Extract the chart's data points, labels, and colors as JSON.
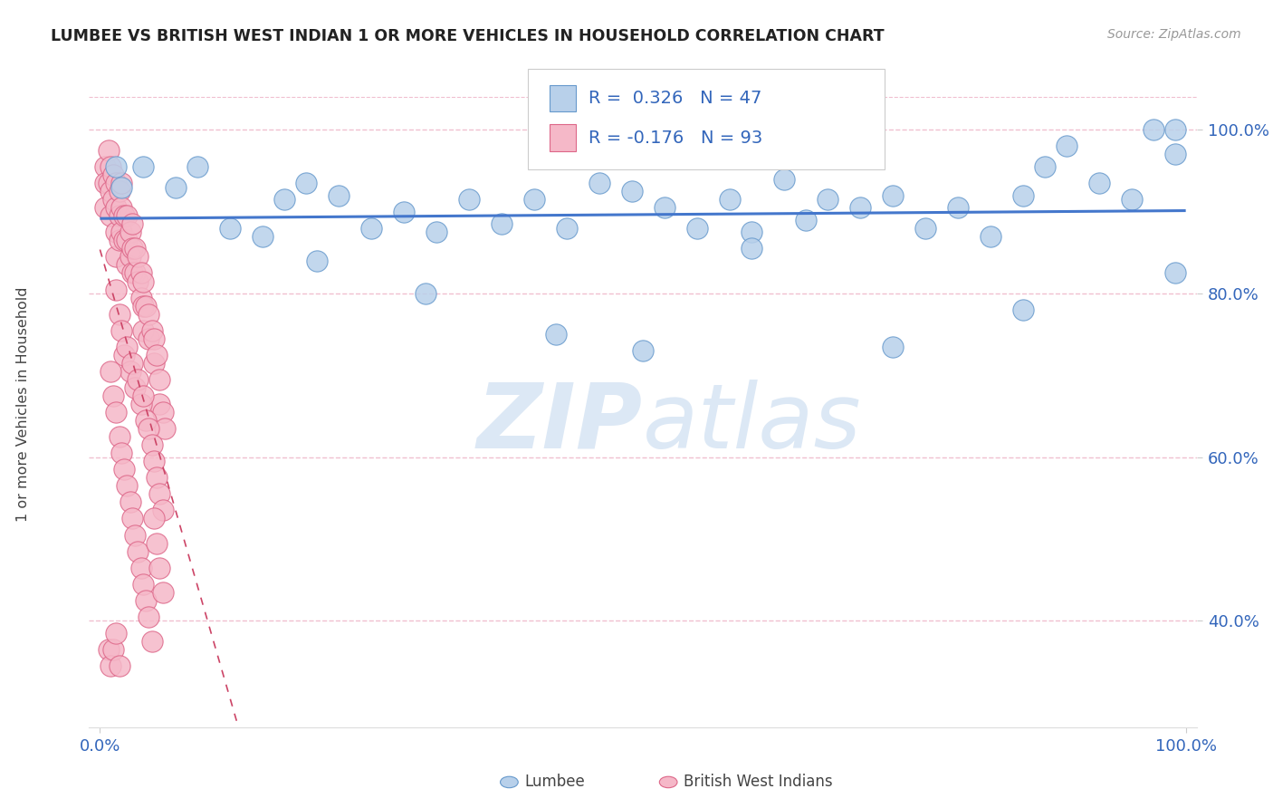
{
  "title": "LUMBEE VS BRITISH WEST INDIAN 1 OR MORE VEHICLES IN HOUSEHOLD CORRELATION CHART",
  "source_text": "Source: ZipAtlas.com",
  "ylabel": "1 or more Vehicles in Household",
  "xlim": [
    -0.01,
    1.01
  ],
  "ylim": [
    0.27,
    1.06
  ],
  "y_ticks": [
    0.4,
    0.6,
    0.8,
    1.0
  ],
  "y_tick_labels": [
    "40.0%",
    "60.0%",
    "80.0%",
    "100.0%"
  ],
  "x_tick_labels": [
    "0.0%",
    "100.0%"
  ],
  "R_blue": 0.326,
  "N_blue": 47,
  "R_pink": -0.176,
  "N_pink": 93,
  "blue_face": "#b8d0ea",
  "blue_edge": "#6699cc",
  "pink_face": "#f5b8c8",
  "pink_edge": "#dd6688",
  "trend_blue": "#4477cc",
  "trend_pink": "#cc4466",
  "watermark_color": "#dce8f5",
  "grid_color": "#f0c0d0",
  "bg_color": "#ffffff",
  "tick_color": "#3366bb",
  "blue_scatter_x": [
    0.015,
    0.02,
    0.04,
    0.07,
    0.09,
    0.12,
    0.15,
    0.17,
    0.19,
    0.22,
    0.25,
    0.28,
    0.31,
    0.34,
    0.37,
    0.4,
    0.43,
    0.46,
    0.49,
    0.52,
    0.55,
    0.58,
    0.6,
    0.63,
    0.65,
    0.67,
    0.7,
    0.73,
    0.76,
    0.79,
    0.82,
    0.85,
    0.87,
    0.89,
    0.92,
    0.95,
    0.97,
    0.99,
    0.99,
    0.99,
    0.85,
    0.73,
    0.6,
    0.5,
    0.42,
    0.3,
    0.2
  ],
  "blue_scatter_y": [
    0.955,
    0.93,
    0.955,
    0.93,
    0.955,
    0.88,
    0.87,
    0.915,
    0.935,
    0.92,
    0.88,
    0.9,
    0.875,
    0.915,
    0.885,
    0.915,
    0.88,
    0.935,
    0.925,
    0.905,
    0.88,
    0.915,
    0.875,
    0.94,
    0.89,
    0.915,
    0.905,
    0.92,
    0.88,
    0.905,
    0.87,
    0.92,
    0.955,
    0.98,
    0.935,
    0.915,
    1.0,
    1.0,
    0.97,
    0.825,
    0.78,
    0.735,
    0.855,
    0.73,
    0.75,
    0.8,
    0.84
  ],
  "pink_scatter_x": [
    0.005,
    0.005,
    0.005,
    0.008,
    0.008,
    0.01,
    0.01,
    0.01,
    0.012,
    0.012,
    0.015,
    0.015,
    0.015,
    0.015,
    0.018,
    0.018,
    0.018,
    0.02,
    0.02,
    0.02,
    0.022,
    0.022,
    0.025,
    0.025,
    0.025,
    0.028,
    0.028,
    0.03,
    0.03,
    0.03,
    0.032,
    0.032,
    0.035,
    0.035,
    0.038,
    0.038,
    0.04,
    0.04,
    0.04,
    0.042,
    0.045,
    0.045,
    0.048,
    0.05,
    0.05,
    0.052,
    0.055,
    0.055,
    0.058,
    0.06,
    0.015,
    0.018,
    0.02,
    0.022,
    0.025,
    0.028,
    0.03,
    0.032,
    0.035,
    0.038,
    0.04,
    0.042,
    0.045,
    0.048,
    0.05,
    0.052,
    0.055,
    0.058,
    0.01,
    0.012,
    0.015,
    0.018,
    0.02,
    0.022,
    0.025,
    0.028,
    0.03,
    0.032,
    0.035,
    0.038,
    0.04,
    0.042,
    0.045,
    0.048,
    0.05,
    0.052,
    0.055,
    0.058,
    0.008,
    0.01,
    0.012,
    0.015,
    0.018
  ],
  "pink_scatter_y": [
    0.955,
    0.935,
    0.905,
    0.975,
    0.935,
    0.955,
    0.925,
    0.895,
    0.945,
    0.915,
    0.935,
    0.905,
    0.875,
    0.845,
    0.925,
    0.895,
    0.865,
    0.935,
    0.905,
    0.875,
    0.895,
    0.865,
    0.895,
    0.865,
    0.835,
    0.875,
    0.845,
    0.885,
    0.855,
    0.825,
    0.855,
    0.825,
    0.845,
    0.815,
    0.825,
    0.795,
    0.815,
    0.785,
    0.755,
    0.785,
    0.775,
    0.745,
    0.755,
    0.745,
    0.715,
    0.725,
    0.695,
    0.665,
    0.655,
    0.635,
    0.805,
    0.775,
    0.755,
    0.725,
    0.735,
    0.705,
    0.715,
    0.685,
    0.695,
    0.665,
    0.675,
    0.645,
    0.635,
    0.615,
    0.595,
    0.575,
    0.555,
    0.535,
    0.705,
    0.675,
    0.655,
    0.625,
    0.605,
    0.585,
    0.565,
    0.545,
    0.525,
    0.505,
    0.485,
    0.465,
    0.445,
    0.425,
    0.405,
    0.375,
    0.525,
    0.495,
    0.465,
    0.435,
    0.365,
    0.345,
    0.365,
    0.385,
    0.345
  ]
}
